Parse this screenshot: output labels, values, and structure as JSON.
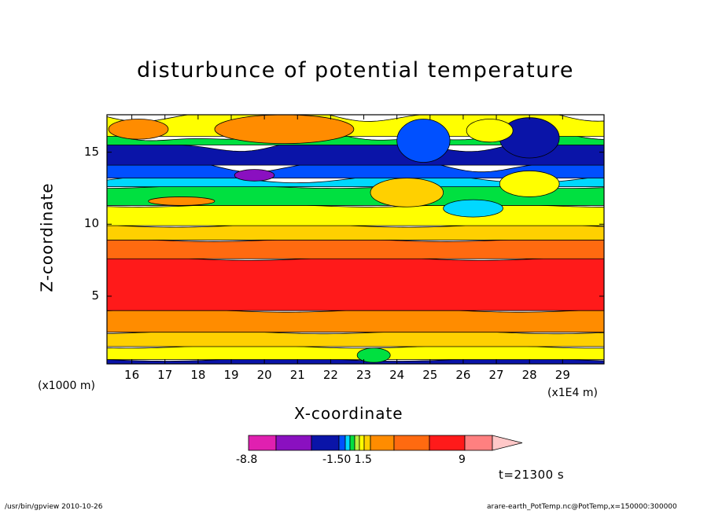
{
  "chart_data": {
    "type": "heatmap",
    "title": "disturbunce of potential temperature",
    "xlabel": "X-coordinate",
    "ylabel": "Z-coordinate",
    "x_unit_left": "(x1000 m)",
    "x_unit_right": "(x1E4 m)",
    "x_ticks": [
      "16",
      "17",
      "18",
      "19",
      "20",
      "21",
      "22",
      "23",
      "24",
      "25",
      "26",
      "27",
      "28",
      "29"
    ],
    "y_ticks": [
      "5",
      "10",
      "15"
    ],
    "xlim": [
      15.25,
      30.25
    ],
    "ylim": [
      0.3,
      17.6
    ],
    "colorbar": {
      "labels": [
        "-8.8",
        "-1.50 1.5",
        "9"
      ],
      "colors": [
        "#e020b0",
        "#8a10c0",
        "#0a14a8",
        "#0050ff",
        "#00d8ff",
        "#00e040",
        "#b8f040",
        "#ffff00",
        "#ffd000",
        "#ff8c00",
        "#ff6a10",
        "#ff1a1a",
        "#ff8080",
        "#ffc8c8"
      ]
    },
    "bands": [
      {
        "z0": 0.3,
        "z1": 0.6,
        "level": "#0a14a8"
      },
      {
        "z0": 0.6,
        "z1": 1.5,
        "level": "#ffff00"
      },
      {
        "z0": 1.5,
        "z1": 2.5,
        "level": "#ffd000"
      },
      {
        "z0": 2.5,
        "z1": 4.0,
        "level": "#ff8c00"
      },
      {
        "z0": 4.0,
        "z1": 7.6,
        "level": "#ff1a1a"
      },
      {
        "z0": 7.6,
        "z1": 8.9,
        "level": "#ff6a10"
      },
      {
        "z0": 8.9,
        "z1": 9.9,
        "level": "#ffd000"
      },
      {
        "z0": 9.9,
        "z1": 11.3,
        "level": "#ffff00"
      },
      {
        "z0": 11.3,
        "z1": 12.6,
        "level": "#00e040"
      },
      {
        "z0": 12.6,
        "z1": 13.2,
        "level": "#00d8ff"
      },
      {
        "z0": 13.2,
        "z1": 14.1,
        "level": "#0050ff"
      },
      {
        "z0": 14.1,
        "z1": 15.5,
        "level": "#0a14a8"
      },
      {
        "z0": 15.5,
        "z1": 16.1,
        "level": "#00e040"
      },
      {
        "z0": 16.1,
        "z1": 17.6,
        "level": "#ffff00"
      }
    ],
    "blobs": [
      {
        "x": 20.6,
        "z": 16.6,
        "rx": 2.1,
        "rz": 1.0,
        "level": "#ff8c00"
      },
      {
        "x": 16.2,
        "z": 16.6,
        "rx": 0.9,
        "rz": 0.7,
        "level": "#ff8c00"
      },
      {
        "x": 24.8,
        "z": 15.8,
        "rx": 0.8,
        "rz": 1.5,
        "level": "#0050ff"
      },
      {
        "x": 28.0,
        "z": 16.0,
        "rx": 0.9,
        "rz": 1.4,
        "level": "#0a14a8"
      },
      {
        "x": 26.8,
        "z": 16.5,
        "rx": 0.7,
        "rz": 0.8,
        "level": "#ffff00"
      },
      {
        "x": 19.7,
        "z": 13.4,
        "rx": 0.6,
        "rz": 0.4,
        "level": "#8a10c0"
      },
      {
        "x": 24.3,
        "z": 12.2,
        "rx": 1.1,
        "rz": 1.0,
        "level": "#ffd000"
      },
      {
        "x": 28.0,
        "z": 12.8,
        "rx": 0.9,
        "rz": 0.9,
        "level": "#ffff00"
      },
      {
        "x": 26.3,
        "z": 11.1,
        "rx": 0.9,
        "rz": 0.6,
        "level": "#00d8ff"
      },
      {
        "x": 17.5,
        "z": 11.6,
        "rx": 1.0,
        "rz": 0.3,
        "level": "#ff8c00"
      },
      {
        "x": 23.3,
        "z": 0.9,
        "rx": 0.5,
        "rz": 0.5,
        "level": "#00e040"
      }
    ]
  },
  "colorbar_labels": {
    "low": "-8.8",
    "mid": "-1.50 1.5",
    "high": "9"
  },
  "timestamp": "t=21300 s",
  "footer": {
    "left": "/usr/bin/gpview   2010-10-26",
    "right": "arare-earth_PotTemp.nc@PotTemp,x=150000:300000"
  }
}
